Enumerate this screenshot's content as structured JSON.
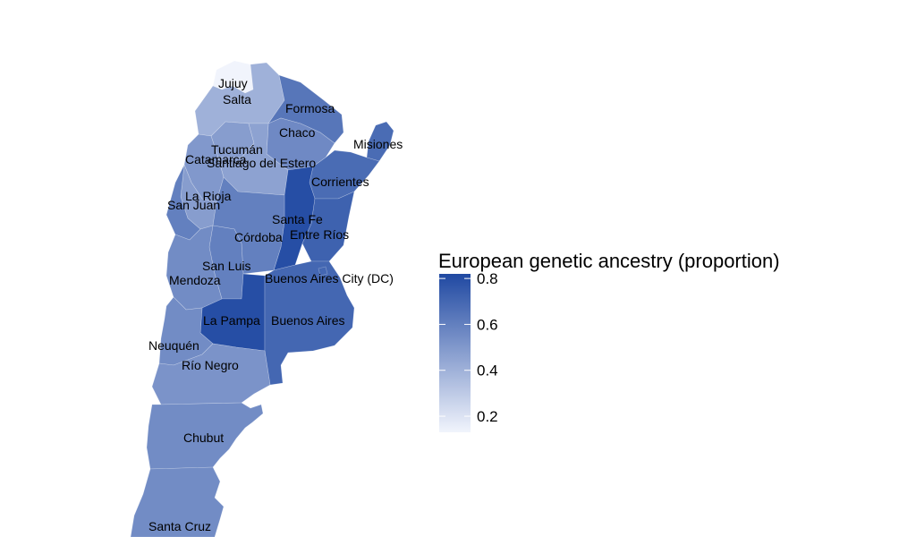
{
  "map": {
    "legend": {
      "title": "European genetic ancestry (proportion)",
      "ticks": [
        {
          "value": 0.8,
          "label": "0.8"
        },
        {
          "value": 0.6,
          "label": "0.6"
        },
        {
          "value": 0.4,
          "label": "0.4"
        },
        {
          "value": 0.2,
          "label": "0.2"
        }
      ],
      "range": [
        0.13,
        0.82
      ],
      "color_low": "#f1f4fc",
      "color_high": "#2049a2"
    },
    "provinces": [
      {
        "id": "jujuy",
        "label": "Jujuy",
        "value": 0.13
      },
      {
        "id": "salta",
        "label": "Salta",
        "value": 0.4
      },
      {
        "id": "formosa",
        "label": "Formosa",
        "value": 0.64
      },
      {
        "id": "chaco",
        "label": "Chaco",
        "value": 0.56
      },
      {
        "id": "misiones",
        "label": "Misiones",
        "value": 0.68
      },
      {
        "id": "tucuman",
        "label": "Tucumán",
        "value": 0.48
      },
      {
        "id": "catamarca",
        "label": "Catamarca",
        "value": 0.5
      },
      {
        "id": "santiago",
        "label": "Santiago del Estero",
        "value": 0.46
      },
      {
        "id": "corrientes",
        "label": "Corrientes",
        "value": 0.68
      },
      {
        "id": "larioja",
        "label": "La Rioja",
        "value": 0.48
      },
      {
        "id": "sanjuan",
        "label": "San Juan",
        "value": 0.6
      },
      {
        "id": "santafe",
        "label": "Santa Fe",
        "value": 0.8
      },
      {
        "id": "entrerios",
        "label": "Entre Ríos",
        "value": 0.72
      },
      {
        "id": "cordoba",
        "label": "Córdoba",
        "value": 0.6
      },
      {
        "id": "sanluis",
        "label": "San Luis",
        "value": 0.6
      },
      {
        "id": "mendoza",
        "label": "Mendoza",
        "value": 0.55
      },
      {
        "id": "caba",
        "label": "Buenos Aires City (DC)",
        "value": 0.7
      },
      {
        "id": "lapampa",
        "label": "La Pampa",
        "value": 0.8
      },
      {
        "id": "buenosaires",
        "label": "Buenos Aires",
        "value": 0.7
      },
      {
        "id": "neuquen",
        "label": "Neuquén",
        "value": 0.55
      },
      {
        "id": "rionegro",
        "label": "Río Negro",
        "value": 0.52
      },
      {
        "id": "chubut",
        "label": "Chubut",
        "value": 0.55
      },
      {
        "id": "santacruz",
        "label": "Santa Cruz",
        "value": 0.55
      }
    ]
  }
}
